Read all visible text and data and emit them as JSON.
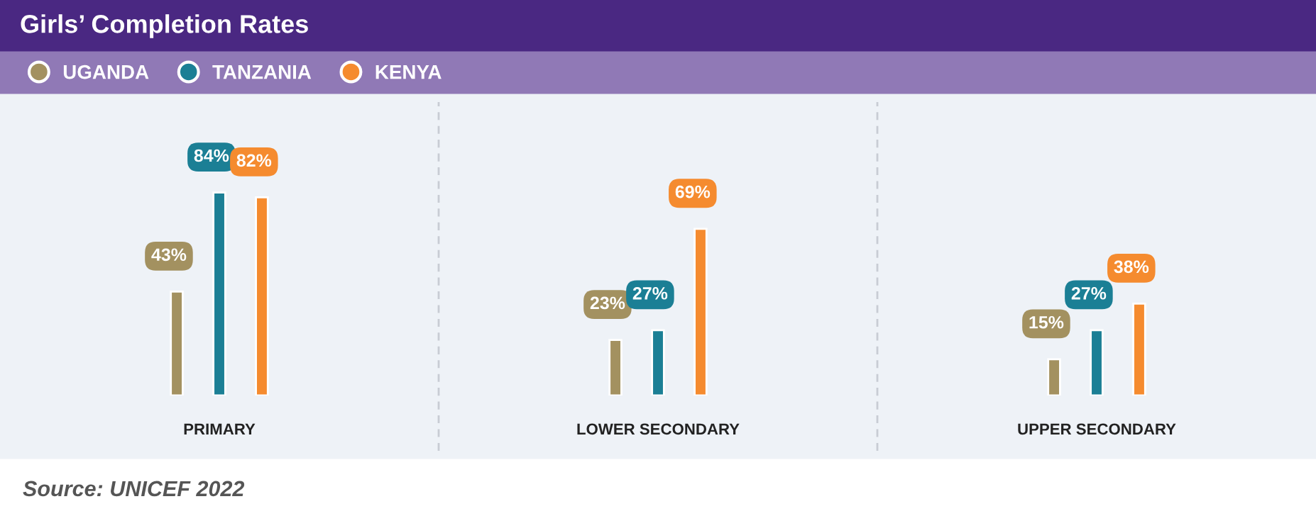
{
  "chart_data": {
    "type": "bar",
    "title": "Girls’ Completion Rates",
    "categories": [
      "PRIMARY",
      "LOWER SECONDARY",
      "UPPER SECONDARY"
    ],
    "series": [
      {
        "name": "UGANDA",
        "color": "#a39160",
        "values": [
          43,
          23,
          15
        ],
        "value_labels": [
          "43%",
          "23%",
          "15%"
        ]
      },
      {
        "name": "TANZANIA",
        "color": "#1b7f95",
        "values": [
          84,
          27,
          27
        ],
        "value_labels": [
          "84%",
          "27%",
          "27%"
        ]
      },
      {
        "name": "KENYA",
        "color": "#f58b2f",
        "values": [
          82,
          69,
          38
        ],
        "value_labels": [
          "82%",
          "69%",
          "38%"
        ]
      }
    ],
    "legend": "top left",
    "annotations": [
      "Source: UNICEF 2022"
    ]
  }
}
